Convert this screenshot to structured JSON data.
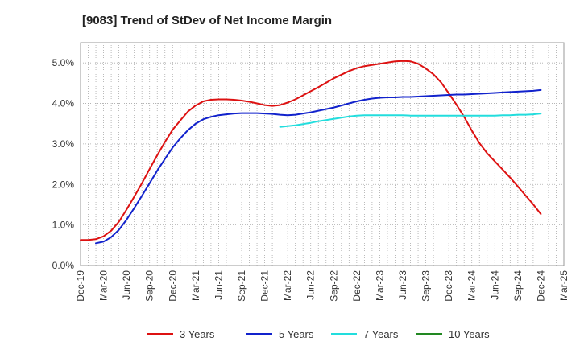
{
  "chart_data": {
    "type": "line",
    "title": "[9083]  Trend of StDev of Net Income Margin",
    "xlabel": "",
    "ylabel": "",
    "ylim": [
      0,
      5.5
    ],
    "yticks": [
      0,
      1,
      2,
      3,
      4,
      5
    ],
    "ytick_labels": [
      "0.0%",
      "1.0%",
      "2.0%",
      "3.0%",
      "4.0%",
      "5.0%"
    ],
    "x_tick_labels": [
      "Dec-19",
      "Mar-20",
      "Jun-20",
      "Sep-20",
      "Dec-20",
      "Mar-21",
      "Jun-21",
      "Sep-21",
      "Dec-21",
      "Mar-22",
      "Jun-22",
      "Sep-22",
      "Dec-22",
      "Mar-23",
      "Jun-23",
      "Sep-23",
      "Dec-23",
      "Mar-24",
      "Jun-24",
      "Sep-24",
      "Dec-24",
      "Mar-25"
    ],
    "grid": true,
    "legend_position": "bottom",
    "series": [
      {
        "name": "3 Years",
        "color": "#dd1111",
        "x": [
          "Dec-19",
          "Jan-20",
          "Feb-20",
          "Mar-20",
          "Apr-20",
          "May-20",
          "Jun-20",
          "Jul-20",
          "Aug-20",
          "Sep-20",
          "Oct-20",
          "Nov-20",
          "Dec-20",
          "Jan-21",
          "Feb-21",
          "Mar-21",
          "Apr-21",
          "May-21",
          "Jun-21",
          "Jul-21",
          "Aug-21",
          "Sep-21",
          "Oct-21",
          "Nov-21",
          "Dec-21",
          "Jan-22",
          "Feb-22",
          "Mar-22",
          "Apr-22",
          "May-22",
          "Jun-22",
          "Jul-22",
          "Aug-22",
          "Sep-22",
          "Oct-22",
          "Nov-22",
          "Dec-22",
          "Jan-23",
          "Feb-23",
          "Mar-23",
          "Apr-23",
          "May-23",
          "Jun-23",
          "Jul-23",
          "Aug-23",
          "Sep-23",
          "Oct-23",
          "Nov-23",
          "Dec-23",
          "Jan-24",
          "Feb-24",
          "Mar-24",
          "Apr-24",
          "May-24",
          "Jun-24",
          "Jul-24",
          "Aug-24",
          "Sep-24",
          "Oct-24",
          "Nov-24",
          "Dec-24"
        ],
        "values": [
          0.63,
          0.63,
          0.65,
          0.72,
          0.86,
          1.08,
          1.38,
          1.7,
          2.03,
          2.38,
          2.72,
          3.05,
          3.35,
          3.58,
          3.8,
          3.95,
          4.05,
          4.09,
          4.1,
          4.1,
          4.09,
          4.07,
          4.04,
          4.0,
          3.96,
          3.94,
          3.96,
          4.02,
          4.1,
          4.2,
          4.3,
          4.4,
          4.51,
          4.62,
          4.71,
          4.8,
          4.87,
          4.92,
          4.95,
          4.98,
          5.01,
          5.04,
          5.05,
          5.04,
          4.98,
          4.86,
          4.72,
          4.52,
          4.25,
          3.97,
          3.67,
          3.33,
          3.02,
          2.77,
          2.57,
          2.37,
          2.17,
          1.95,
          1.73,
          1.51,
          1.27
        ]
      },
      {
        "name": "5 Years",
        "color": "#1122cc",
        "x": [
          "Feb-20",
          "Mar-20",
          "Apr-20",
          "May-20",
          "Jun-20",
          "Jul-20",
          "Aug-20",
          "Sep-20",
          "Oct-20",
          "Nov-20",
          "Dec-20",
          "Jan-21",
          "Feb-21",
          "Mar-21",
          "Apr-21",
          "May-21",
          "Jun-21",
          "Jul-21",
          "Aug-21",
          "Sep-21",
          "Oct-21",
          "Nov-21",
          "Dec-21",
          "Jan-22",
          "Feb-22",
          "Mar-22",
          "Apr-22",
          "May-22",
          "Jun-22",
          "Jul-22",
          "Aug-22",
          "Sep-22",
          "Oct-22",
          "Nov-22",
          "Dec-22",
          "Jan-23",
          "Feb-23",
          "Mar-23",
          "Apr-23",
          "May-23",
          "Jun-23",
          "Jul-23",
          "Aug-23",
          "Sep-23",
          "Oct-23",
          "Nov-23",
          "Dec-23",
          "Jan-24",
          "Feb-24",
          "Mar-24",
          "Apr-24",
          "May-24",
          "Jun-24",
          "Jul-24",
          "Aug-24",
          "Sep-24",
          "Oct-24",
          "Nov-24",
          "Dec-24"
        ],
        "values": [
          0.55,
          0.59,
          0.7,
          0.88,
          1.13,
          1.42,
          1.72,
          2.03,
          2.34,
          2.63,
          2.91,
          3.14,
          3.34,
          3.5,
          3.61,
          3.67,
          3.71,
          3.73,
          3.75,
          3.76,
          3.76,
          3.76,
          3.75,
          3.74,
          3.72,
          3.71,
          3.72,
          3.75,
          3.78,
          3.82,
          3.86,
          3.9,
          3.95,
          4.0,
          4.05,
          4.09,
          4.12,
          4.14,
          4.15,
          4.15,
          4.16,
          4.16,
          4.17,
          4.18,
          4.19,
          4.2,
          4.21,
          4.22,
          4.22,
          4.23,
          4.24,
          4.25,
          4.26,
          4.27,
          4.28,
          4.29,
          4.3,
          4.31,
          4.33
        ]
      },
      {
        "name": "7 Years",
        "color": "#22dddd",
        "x": [
          "Feb-22",
          "Mar-22",
          "Apr-22",
          "May-22",
          "Jun-22",
          "Jul-22",
          "Aug-22",
          "Sep-22",
          "Oct-22",
          "Nov-22",
          "Dec-22",
          "Jan-23",
          "Feb-23",
          "Mar-23",
          "Apr-23",
          "May-23",
          "Jun-23",
          "Jul-23",
          "Aug-23",
          "Sep-23",
          "Oct-23",
          "Nov-23",
          "Dec-23",
          "Jan-24",
          "Feb-24",
          "Mar-24",
          "Apr-24",
          "May-24",
          "Jun-24",
          "Jul-24",
          "Aug-24",
          "Sep-24",
          "Oct-24",
          "Nov-24",
          "Dec-24"
        ],
        "values": [
          3.42,
          3.44,
          3.46,
          3.49,
          3.52,
          3.56,
          3.59,
          3.62,
          3.65,
          3.68,
          3.7,
          3.71,
          3.71,
          3.71,
          3.71,
          3.71,
          3.71,
          3.7,
          3.7,
          3.7,
          3.7,
          3.7,
          3.7,
          3.7,
          3.7,
          3.7,
          3.7,
          3.7,
          3.7,
          3.71,
          3.71,
          3.72,
          3.72,
          3.73,
          3.75
        ]
      },
      {
        "name": "10 Years",
        "color": "#228822",
        "x": [],
        "values": []
      }
    ]
  }
}
